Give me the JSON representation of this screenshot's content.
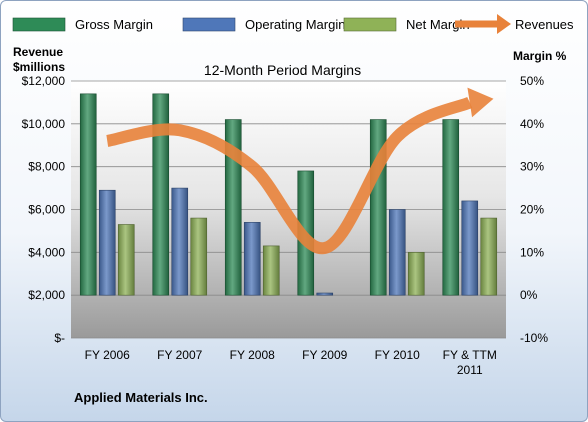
{
  "chart_data": {
    "type": "bar",
    "title": "12-Month Period Margins",
    "footer": "Applied Materials Inc.",
    "categories": [
      [
        "FY 2006"
      ],
      [
        "FY 2007"
      ],
      [
        "FY 2008"
      ],
      [
        "FY 2009"
      ],
      [
        "FY 2010"
      ],
      [
        "FY & TTM",
        "2011"
      ]
    ],
    "left_axis": {
      "label_lines": [
        "Revenue",
        "$millions"
      ],
      "range": [
        0,
        12000
      ],
      "tick_labels": [
        "$-",
        "$2,000",
        "$4,000",
        "$6,000",
        "$8,000",
        "$10,000",
        "$12,000"
      ]
    },
    "right_axis": {
      "label": "Margin %",
      "range": [
        -10,
        50
      ],
      "tick_labels": [
        "-10%",
        "0%",
        "10%",
        "20%",
        "30%",
        "40%",
        "50%"
      ]
    },
    "grid": true,
    "legend_position": "top",
    "series": [
      {
        "name": "Gross Margin",
        "kind": "bar",
        "axis": "right",
        "color": "#2e8b57",
        "values": [
          47,
          47,
          41,
          29,
          41,
          41
        ]
      },
      {
        "name": "Operating Margin",
        "kind": "bar",
        "axis": "right",
        "color": "#4f77b9",
        "values": [
          24.5,
          25,
          17,
          0.5,
          20,
          22
        ]
      },
      {
        "name": "Net Margin",
        "kind": "bar",
        "axis": "right",
        "color": "#8fb257",
        "values": [
          16.5,
          18,
          11.5,
          0,
          10,
          18
        ]
      },
      {
        "name": "Revenues",
        "kind": "line",
        "axis": "left",
        "color": "#e8823a",
        "values": [
          9200,
          9700,
          8000,
          4200,
          9400,
          11000
        ]
      }
    ]
  }
}
